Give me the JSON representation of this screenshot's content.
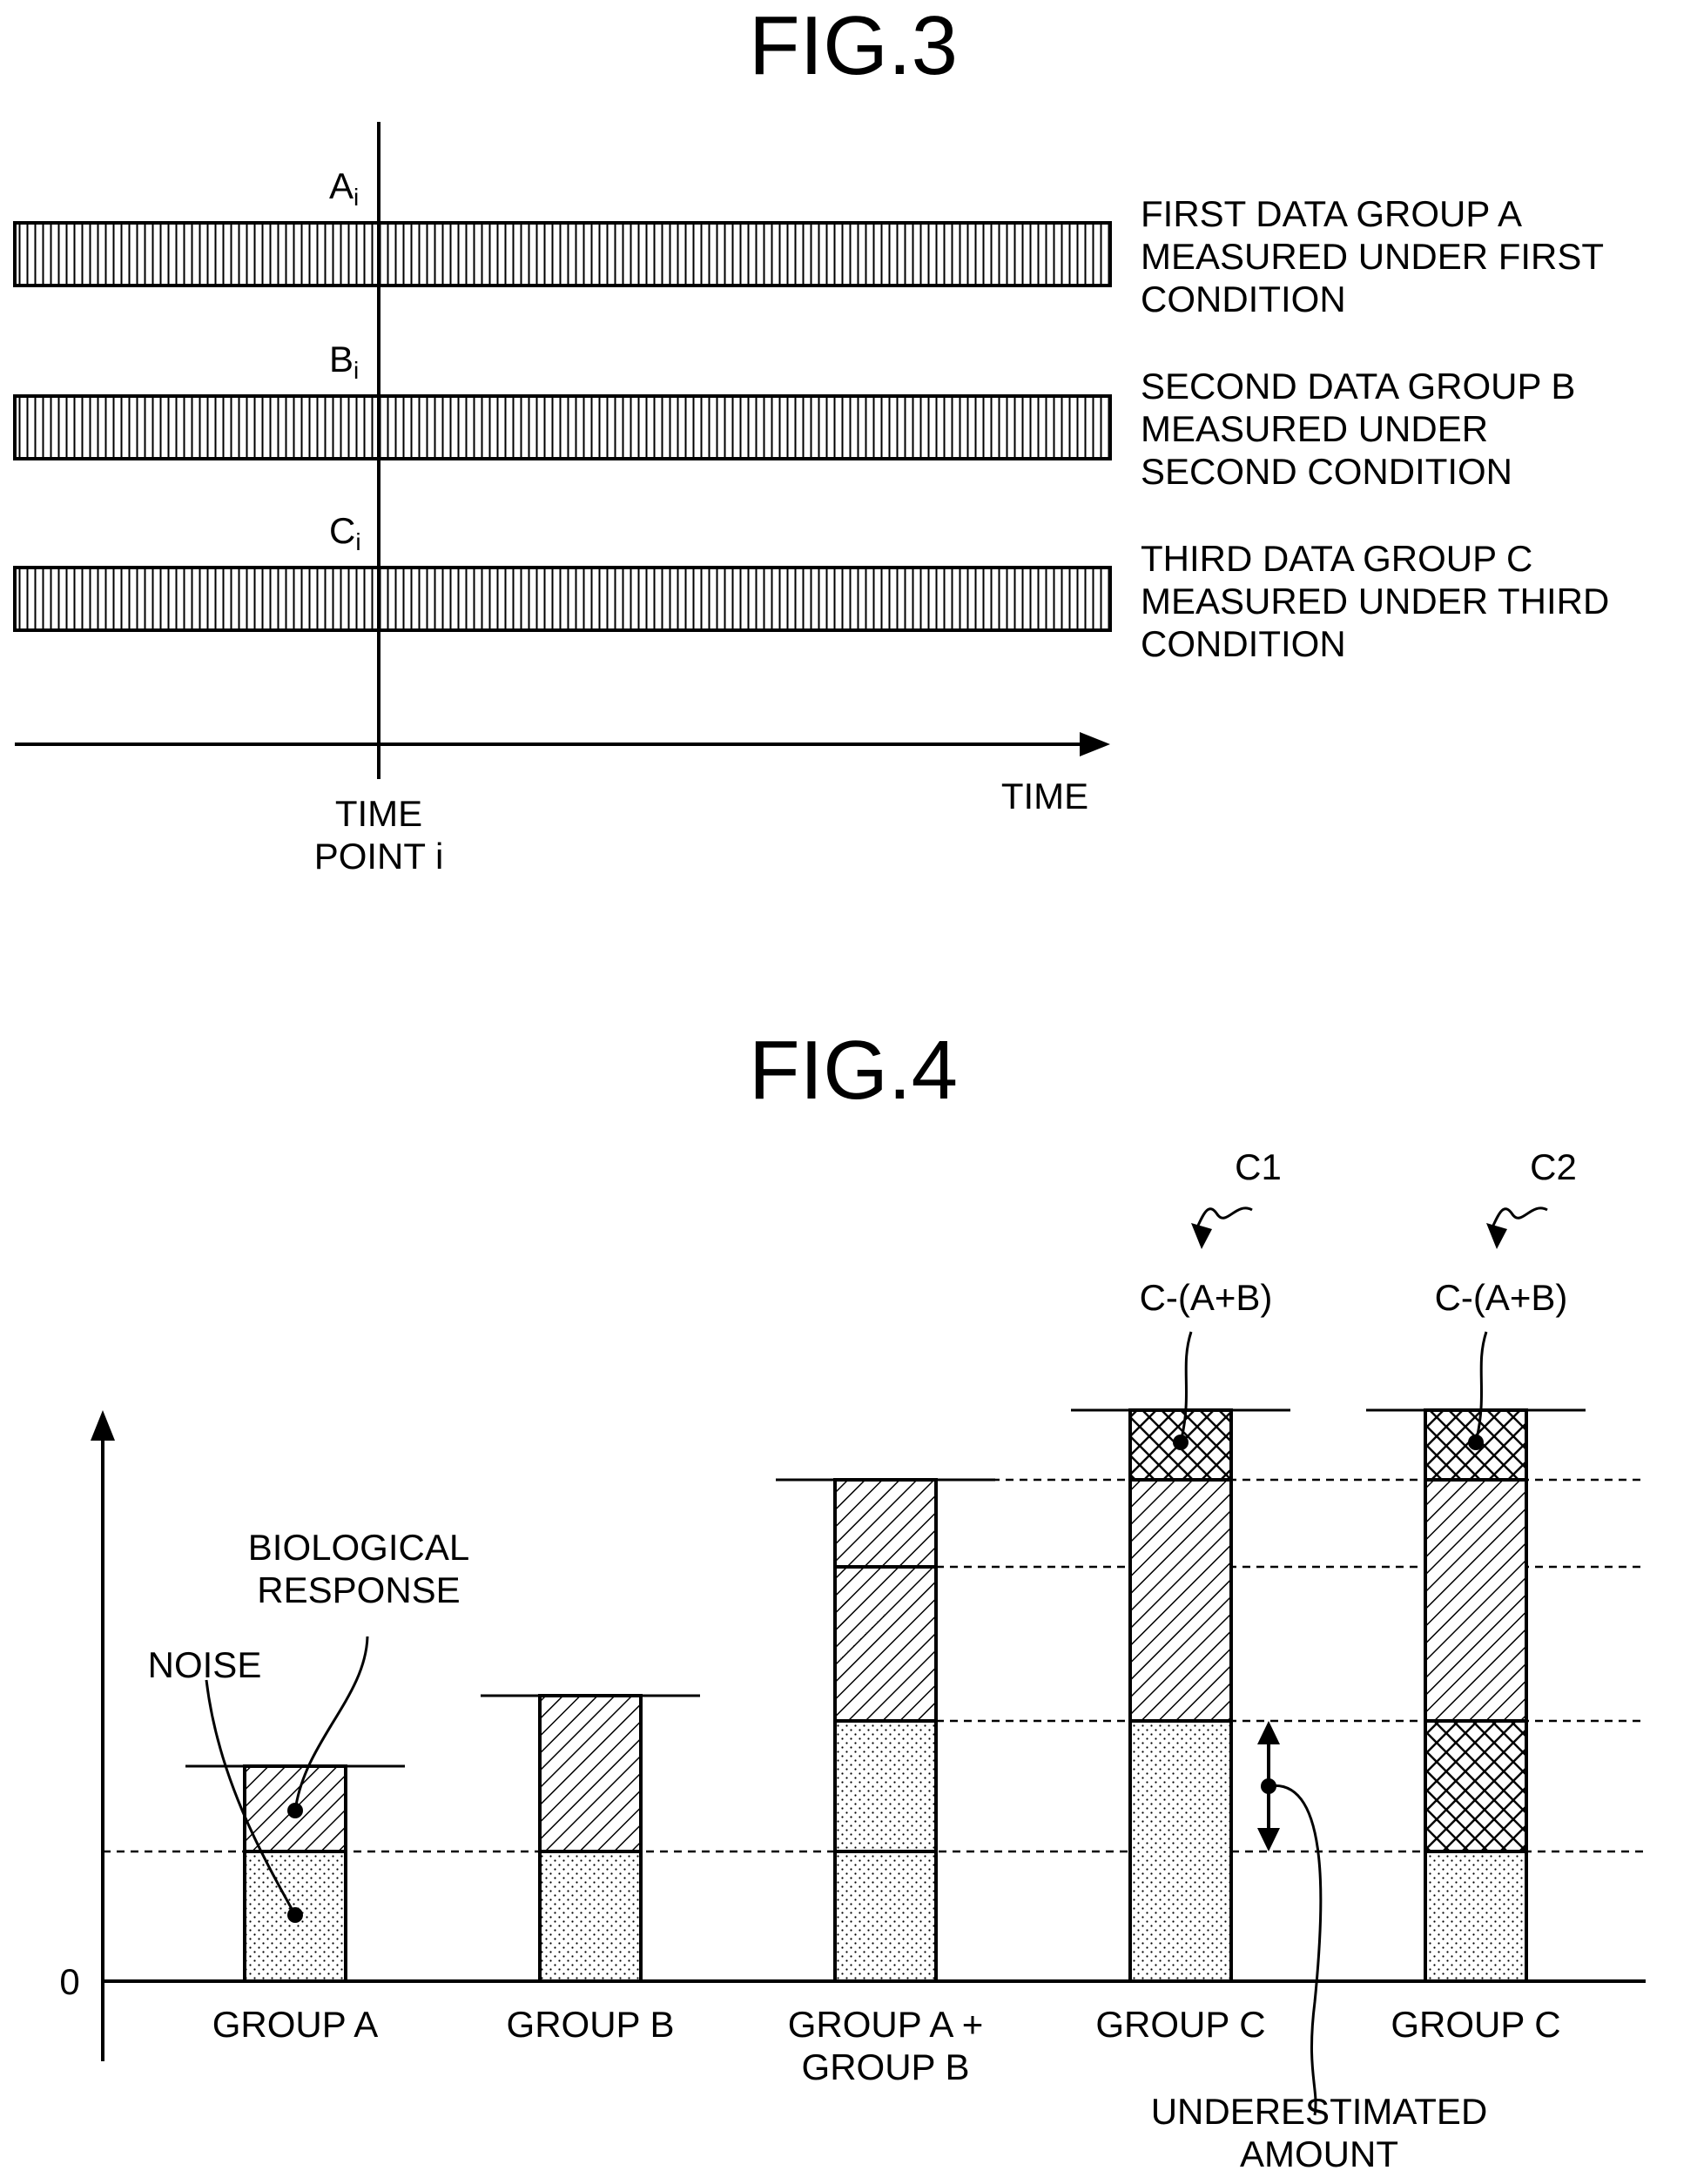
{
  "fig3": {
    "title": "FIG.3",
    "marker_a": "A",
    "marker_b": "B",
    "marker_c": "C",
    "marker_sub": "i",
    "group_a_label": [
      "FIRST DATA GROUP A",
      "MEASURED UNDER FIRST",
      "CONDITION"
    ],
    "group_b_label": [
      "SECOND DATA GROUP B",
      "MEASURED UNDER",
      "SECOND CONDITION"
    ],
    "group_c_label": [
      "THIRD DATA GROUP C",
      "MEASURED UNDER THIRD",
      "CONDITION"
    ],
    "axis_label": "TIME",
    "time_point_label": [
      "TIME",
      "POINT i"
    ]
  },
  "fig4": {
    "title": "FIG.4",
    "zero_label": "0",
    "bio_response_label": [
      "BIOLOGICAL",
      "RESPONSE"
    ],
    "noise_label": "NOISE",
    "c1_label": "C1",
    "c2_label": "C2",
    "formula_c1": "C-(A+B)",
    "formula_c2": "C-(A+B)",
    "underestimated_label": [
      "UNDERESTIMATED",
      "AMOUNT"
    ],
    "categories": [
      "GROUP A",
      "GROUP B",
      "GROUP A +",
      "GROUP B",
      "GROUP C",
      "GROUP C"
    ]
  }
}
